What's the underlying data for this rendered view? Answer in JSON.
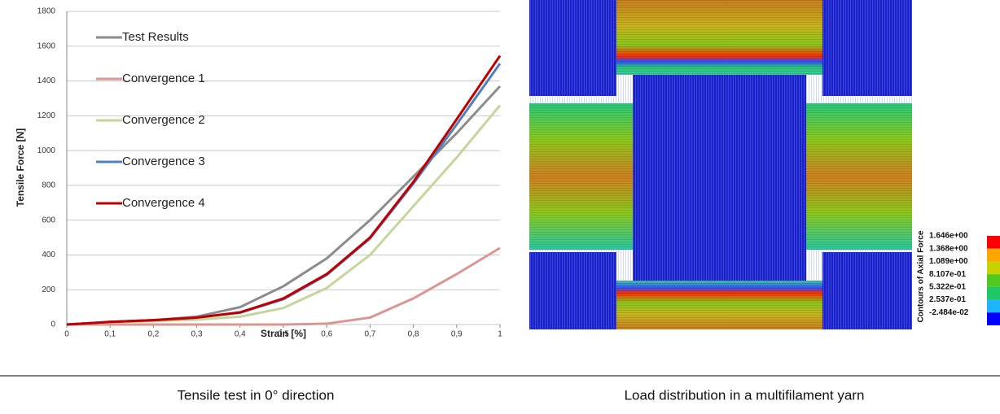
{
  "chart_data": {
    "type": "line",
    "x_label": "Strain [%]",
    "y_label": "Tensile Force [N]",
    "caption": "Tensile test in 0° direction",
    "x": [
      0,
      0.1,
      0.2,
      0.3,
      0.4,
      0.5,
      0.6,
      0.7,
      0.8,
      0.9,
      1
    ],
    "series": [
      {
        "name": "Test Results",
        "color": "#8c8c8c",
        "values": [
          0,
          15,
          25,
          45,
          100,
          220,
          380,
          600,
          850,
          1100,
          1370
        ]
      },
      {
        "name": "Convergence 1",
        "color": "#d99694",
        "values": [
          0,
          0,
          0,
          0,
          0,
          0,
          5,
          40,
          150,
          290,
          440
        ]
      },
      {
        "name": "Convergence 2",
        "color": "#c3d69b",
        "values": [
          0,
          12,
          20,
          28,
          45,
          95,
          210,
          400,
          680,
          960,
          1260
        ]
      },
      {
        "name": "Convergence 3",
        "color": "#4f81bd",
        "values": [
          0,
          15,
          25,
          40,
          68,
          145,
          285,
          495,
          810,
          1150,
          1500
        ]
      },
      {
        "name": "Convergence 4",
        "color": "#c00000",
        "values": [
          0,
          15,
          25,
          40,
          70,
          150,
          290,
          500,
          820,
          1180,
          1545
        ]
      }
    ],
    "xlim": [
      0,
      1
    ],
    "xticks": [
      0,
      {
        "value": 0.1,
        "label": "0,1"
      },
      {
        "value": 0.2,
        "label": "0,2"
      },
      {
        "value": 0.3,
        "label": "0,3"
      },
      {
        "value": 0.4,
        "label": "0,4"
      },
      {
        "value": 0.5,
        "label": "0,5"
      },
      {
        "value": 0.6,
        "label": "0,6"
      },
      {
        "value": 0.7,
        "label": "0,7"
      },
      {
        "value": 0.8,
        "label": "0,8"
      },
      {
        "value": 0.9,
        "label": "0,9"
      },
      1
    ],
    "ylim": [
      0,
      1800
    ],
    "yticks": [
      0,
      200,
      400,
      600,
      800,
      1000,
      1200,
      1400,
      1600,
      1800
    ],
    "grid": true,
    "legend_loc": "upper left"
  },
  "simulation": {
    "caption": "Load distribution in a multifilament yarn",
    "colorbar": {
      "title": "Contours of Axial Force",
      "labels": [
        "1.646e+00",
        "1.368e+00",
        "1.089e+00",
        "8.107e-01",
        "5.322e-01",
        "2.537e-01",
        "-2.484e-02"
      ],
      "colors": [
        "#ff0000",
        "#ffa500",
        "#c8d200",
        "#50c81e",
        "#1ec864",
        "#1eb4ff",
        "#0000ff"
      ]
    }
  }
}
